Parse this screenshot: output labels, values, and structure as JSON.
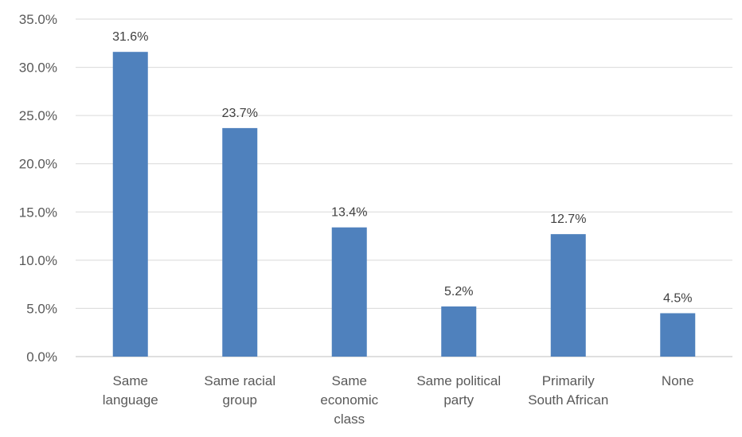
{
  "chart_data": {
    "type": "bar",
    "title": "",
    "xlabel": "",
    "ylabel": "",
    "categories": [
      [
        "Same",
        "language"
      ],
      [
        "Same racial",
        "group"
      ],
      [
        "Same",
        "economic",
        "class"
      ],
      [
        "Same political",
        "party"
      ],
      [
        "Primarily",
        "South African"
      ],
      [
        "None"
      ]
    ],
    "values": [
      31.6,
      23.7,
      13.4,
      5.2,
      12.7,
      4.5
    ],
    "data_labels": [
      "31.6%",
      "23.7%",
      "13.4%",
      "5.2%",
      "12.7%",
      "4.5%"
    ],
    "ylim": [
      0,
      35
    ],
    "yticks": [
      0,
      5,
      10,
      15,
      20,
      25,
      30,
      35
    ],
    "ytick_labels": [
      "0.0%",
      "5.0%",
      "10.0%",
      "15.0%",
      "20.0%",
      "25.0%",
      "30.0%",
      "35.0%"
    ],
    "grid": true,
    "legend": "none",
    "bar_color": "#4f81bd"
  }
}
